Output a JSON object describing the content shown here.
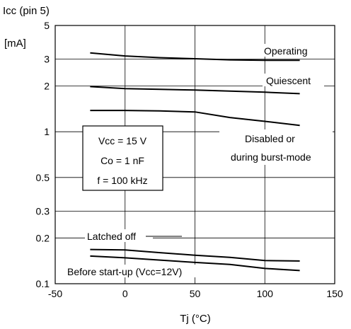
{
  "chart_data": {
    "type": "line",
    "title": "Icc (pin 5)",
    "ylabel": "[mA]",
    "xlabel": "Tj (°C)",
    "x_ticks": [
      -50,
      0,
      50,
      100,
      150
    ],
    "y_ticks": [
      0.1,
      0.2,
      0.3,
      0.5,
      1,
      2,
      3,
      5
    ],
    "xlim": [
      -50,
      150
    ],
    "ylim": [
      0.1,
      5
    ],
    "y_scale": "log",
    "grid": true,
    "conditions": [
      "Vcc = 15 V",
      "Co = 1 nF",
      "f = 100 kHz"
    ],
    "series": [
      {
        "name": "Operating",
        "x": [
          -25,
          0,
          25,
          50,
          75,
          100,
          125
        ],
        "y": [
          3.3,
          3.15,
          3.07,
          3.02,
          2.97,
          2.95,
          2.95
        ]
      },
      {
        "name": "Quiescent",
        "x": [
          -25,
          0,
          25,
          50,
          75,
          100,
          125
        ],
        "y": [
          1.98,
          1.92,
          1.9,
          1.88,
          1.85,
          1.82,
          1.78
        ]
      },
      {
        "name": "Disabled or during burst-mode",
        "x": [
          -25,
          0,
          25,
          50,
          75,
          100,
          125
        ],
        "y": [
          1.38,
          1.38,
          1.37,
          1.35,
          1.24,
          1.17,
          1.1
        ]
      },
      {
        "name": "Latched off",
        "x": [
          -25,
          0,
          25,
          50,
          75,
          100,
          125
        ],
        "y": [
          0.168,
          0.167,
          0.16,
          0.154,
          0.149,
          0.142,
          0.141
        ]
      },
      {
        "name": "Before start-up (Vcc=12V)",
        "x": [
          -25,
          0,
          25,
          50,
          75,
          100,
          125
        ],
        "y": [
          0.152,
          0.148,
          0.143,
          0.138,
          0.134,
          0.126,
          0.122
        ]
      }
    ]
  }
}
